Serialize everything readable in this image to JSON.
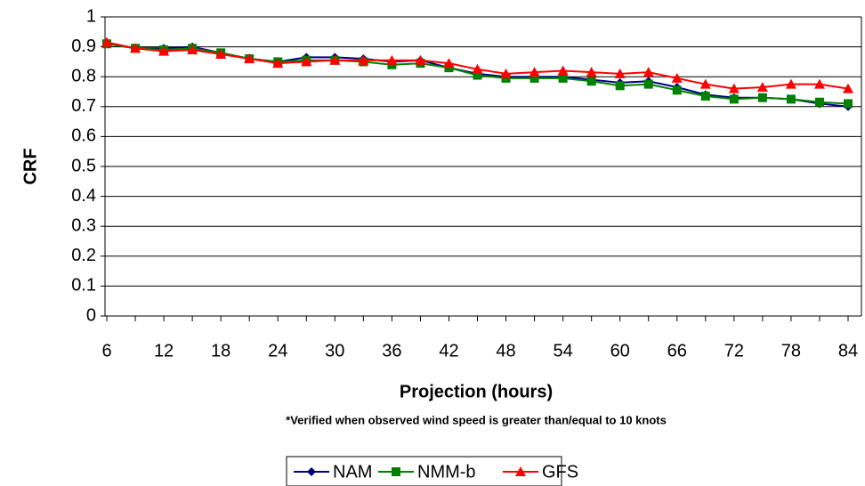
{
  "chart_data": {
    "type": "line",
    "y_label": "CRF",
    "x_label": "Projection (hours)",
    "note": "*Verified when observed wind speed is greater than/equal to 10 knots",
    "categories": [
      "6",
      null,
      "12",
      null,
      "18",
      null,
      "24",
      null,
      "30",
      null,
      "36",
      null,
      "42",
      null,
      "48",
      null,
      "54",
      null,
      "60",
      null,
      "66",
      null,
      "72",
      null,
      "78",
      null,
      "84"
    ],
    "series": [
      {
        "name": "NAM",
        "color": "#000080",
        "marker": "diamond",
        "values": [
          0.91,
          0.895,
          0.895,
          0.9,
          0.88,
          0.86,
          0.85,
          0.865,
          0.865,
          0.86,
          0.85,
          0.855,
          0.83,
          0.81,
          0.8,
          0.8,
          0.8,
          0.79,
          0.78,
          0.785,
          0.765,
          0.74,
          0.73,
          0.73,
          0.725,
          0.71,
          0.7
        ]
      },
      {
        "name": "NMM-b",
        "color": "#008000",
        "marker": "square",
        "values": [
          0.91,
          0.895,
          0.89,
          0.895,
          0.88,
          0.86,
          0.85,
          0.855,
          0.855,
          0.85,
          0.84,
          0.845,
          0.83,
          0.805,
          0.795,
          0.795,
          0.795,
          0.785,
          0.77,
          0.775,
          0.755,
          0.735,
          0.725,
          0.73,
          0.725,
          0.715,
          0.71
        ]
      },
      {
        "name": "GFS",
        "color": "#ff0000",
        "marker": "triangle",
        "values": [
          0.915,
          0.895,
          0.885,
          0.89,
          0.875,
          0.86,
          0.845,
          0.85,
          0.855,
          0.855,
          0.855,
          0.855,
          0.845,
          0.825,
          0.81,
          0.815,
          0.82,
          0.815,
          0.81,
          0.815,
          0.795,
          0.775,
          0.76,
          0.765,
          0.775,
          0.775,
          0.76
        ]
      }
    ],
    "ylim": [
      0,
      1
    ],
    "yticks": [
      0,
      0.1,
      0.2,
      0.3,
      0.4,
      0.5,
      0.6,
      0.7,
      0.8,
      0.9,
      1
    ],
    "grid": true,
    "legend": "bottom"
  }
}
